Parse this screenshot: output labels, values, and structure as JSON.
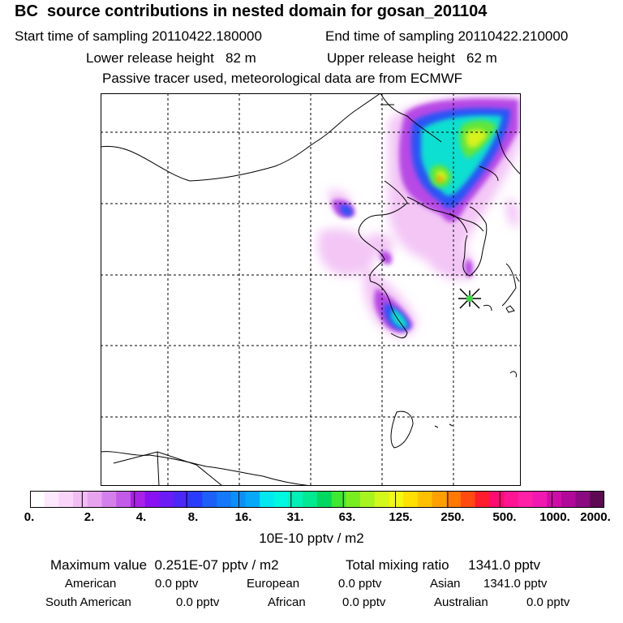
{
  "header": {
    "title": "BC  source contributions in nested domain for gosan_201104",
    "start": "Start time of sampling 20110422.180000",
    "end": "End time of sampling 20110422.210000",
    "lower": "Lower release height   82 m",
    "upper": "Upper release height   62 m",
    "note": "Passive tracer used, meteorological data are from ECMWF"
  },
  "colorbar": {
    "ticks": [
      "0.",
      "2.",
      "4.",
      "8.",
      "16.",
      "31.",
      "63.",
      "125.",
      "250.",
      "500.",
      "1000.",
      "2000."
    ],
    "units": "10E-10 pptv / m2",
    "colors": [
      "#ffffff",
      "#fde8fd",
      "#f9d6f9",
      "#f2bdf2",
      "#e8a3ee",
      "#d480ec",
      "#c25be8",
      "#aa22e8",
      "#8a12f0",
      "#6a1cf5",
      "#4a28f8",
      "#2a3cfa",
      "#1c60f8",
      "#1478f8",
      "#0c90f8",
      "#08a8f8",
      "#00e8f0",
      "#00f8e0",
      "#00f0b8",
      "#00e890",
      "#00d860",
      "#40e830",
      "#78ee20",
      "#a8f420",
      "#d2f81c",
      "#f2f810",
      "#ffe000",
      "#ffc000",
      "#ffa000",
      "#ff7800",
      "#ff4a10",
      "#ff1c2c",
      "#ff0a70",
      "#ff1494",
      "#ff20a8",
      "#f018b0",
      "#d00ca8",
      "#b00898",
      "#8a0a80",
      "#5c0a52"
    ]
  },
  "footer": {
    "max_label": "Maximum value  0.251E-07 pptv / m2",
    "total_label": "Total mixing ratio     1341.0 pptv",
    "regions": [
      {
        "name": "American",
        "value": "0.0 pptv"
      },
      {
        "name": "European",
        "value": "0.0 pptv"
      },
      {
        "name": "Asian",
        "value": "1341.0 pptv"
      },
      {
        "name": "South American",
        "value": "0.0 pptv"
      },
      {
        "name": "African",
        "value": "0.0 pptv"
      },
      {
        "name": "Australian",
        "value": "0.0 pptv"
      }
    ]
  }
}
